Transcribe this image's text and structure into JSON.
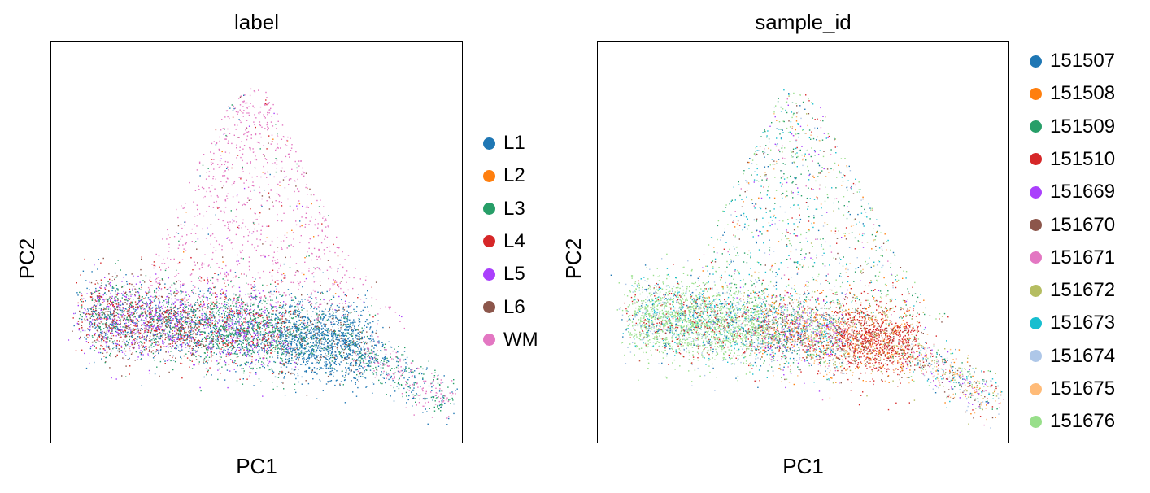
{
  "chart_data": [
    {
      "type": "scatter",
      "title": "label",
      "xlabel": "PC1",
      "ylabel": "PC2",
      "grid": false,
      "legend_position": "right",
      "legend": [
        {
          "name": "L1",
          "color": "#1f77b4"
        },
        {
          "name": "L2",
          "color": "#ff7f0e"
        },
        {
          "name": "L3",
          "color": "#279e68"
        },
        {
          "name": "L4",
          "color": "#d62728"
        },
        {
          "name": "L5",
          "color": "#aa40fc"
        },
        {
          "name": "L6",
          "color": "#8c564b"
        },
        {
          "name": "WM",
          "color": "#e377c2"
        }
      ]
    },
    {
      "type": "scatter",
      "title": "sample_id",
      "xlabel": "PC1",
      "ylabel": "PC2",
      "grid": false,
      "legend_position": "right",
      "legend": [
        {
          "name": "151507",
          "color": "#1f77b4"
        },
        {
          "name": "151508",
          "color": "#ff7f0e"
        },
        {
          "name": "151509",
          "color": "#279e68"
        },
        {
          "name": "151510",
          "color": "#d62728"
        },
        {
          "name": "151669",
          "color": "#aa40fc"
        },
        {
          "name": "151670",
          "color": "#8c564b"
        },
        {
          "name": "151671",
          "color": "#e377c2"
        },
        {
          "name": "151672",
          "color": "#b5bd61"
        },
        {
          "name": "151673",
          "color": "#17becf"
        },
        {
          "name": "151674",
          "color": "#aec7e8"
        },
        {
          "name": "151675",
          "color": "#ffbb78"
        },
        {
          "name": "151676",
          "color": "#98df8a"
        }
      ]
    }
  ]
}
